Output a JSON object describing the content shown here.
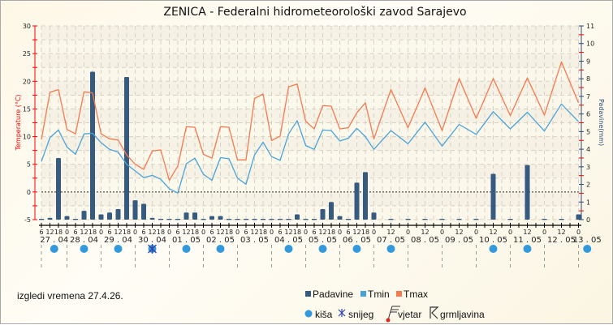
{
  "chart_data": {
    "type": "bar+line",
    "title": "ZENICA - Federalni hidrometeorološki zavod Sarajevo",
    "ylabel_left": "Temperature (°C)",
    "ylabel_right": "Padavine(mm)",
    "ylim_left": [
      -5,
      30
    ],
    "ylim_right": [
      0,
      11
    ],
    "grid": true,
    "legend_position": "bottom",
    "x": [
      "27.04 06",
      "27.04 12",
      "27.04 18",
      "28.04 00",
      "28.04 06",
      "28.04 12",
      "28.04 18",
      "29.04 00",
      "29.04 06",
      "29.04 12",
      "29.04 18",
      "30.04 00",
      "30.04 06",
      "30.04 12",
      "30.04 18",
      "01.05 00",
      "01.05 06",
      "01.05 12",
      "01.05 18",
      "02.05 00",
      "02.05 06",
      "02.05 12",
      "02.05 18",
      "03.05 00",
      "03.05 06",
      "03.05 12",
      "03.05 18",
      "04.05 00",
      "04.05 06",
      "04.05 12",
      "04.05 18",
      "05.05 00",
      "05.05 06",
      "05.05 12",
      "05.05 18",
      "06.05 00",
      "06.05 06",
      "06.05 12",
      "06.05 18",
      "07.05 00",
      "07.05 12",
      "08.05 00",
      "08.05 12",
      "09.05 00",
      "09.05 12",
      "10.05 00",
      "10.05 12",
      "11.05 00",
      "11.05 12",
      "12.05 00",
      "12.05 12",
      "13.05 00"
    ],
    "series": [
      {
        "name": "Padavine",
        "type": "bar",
        "axis": "right",
        "color": "#375a7f",
        "values": [
          0,
          0.1,
          3.5,
          0.2,
          0,
          0.5,
          8.4,
          0.3,
          0.4,
          0.6,
          8.1,
          1.1,
          0.9,
          0.1,
          0,
          0,
          0,
          0.4,
          0.4,
          0,
          0.2,
          0.2,
          0,
          0,
          0,
          0,
          0,
          0,
          0,
          0,
          0.3,
          0,
          0,
          0.6,
          1.0,
          0.2,
          0,
          2.1,
          2.7,
          0.4,
          0,
          0,
          0,
          0,
          0,
          0,
          2.6,
          0,
          3.1,
          0,
          0,
          0.3
        ]
      },
      {
        "name": "Tmin",
        "type": "line",
        "axis": "left",
        "color": "#4aa3d8",
        "values": [
          5.5,
          9.8,
          11.2,
          8.1,
          6.8,
          10.5,
          10.6,
          8.9,
          7.7,
          7.2,
          5.0,
          3.8,
          2.6,
          3.0,
          2.3,
          0.6,
          -0.2,
          5.1,
          6.1,
          3.2,
          2.1,
          6.2,
          6.0,
          2.5,
          1.4,
          6.7,
          9.0,
          6.4,
          5.7,
          10.5,
          12.9,
          8.4,
          7.7,
          11.2,
          11.1,
          9.2,
          9.7,
          11.5,
          10.0,
          7.7,
          11.1,
          8.7,
          12.6,
          8.3,
          12.2,
          10.4,
          14.5,
          11.4,
          14.4,
          11.0,
          15.9,
          12.7
        ]
      },
      {
        "name": "Tmax",
        "type": "line",
        "axis": "left",
        "color": "#f47a50",
        "values": [
          9.5,
          18.0,
          18.5,
          11.3,
          10.5,
          18.1,
          17.9,
          10.5,
          9.6,
          9.4,
          6.7,
          5.0,
          4.1,
          7.4,
          7.6,
          2.1,
          4.7,
          11.8,
          11.7,
          6.8,
          6.1,
          11.8,
          11.7,
          5.8,
          5.8,
          16.9,
          17.7,
          9.3,
          10.1,
          19.0,
          19.5,
          12.8,
          11.4,
          15.6,
          15.5,
          11.4,
          11.6,
          14.3,
          16.1,
          9.6,
          18.5,
          11.6,
          18.8,
          11.1,
          20.5,
          13.3,
          20.5,
          13.8,
          20.6,
          13.9,
          23.5,
          16.1
        ]
      }
    ],
    "days": [
      "27 . 04",
      "28 . 04",
      "29 . 04",
      "30 . 04",
      "01 . 05",
      "02 . 05",
      "03 . 05",
      "04 . 05",
      "05 . 05",
      "06 . 05",
      "07 . 05",
      "08 . 05",
      "09 . 05",
      "10 . 05",
      "11 . 05",
      "12 . 05",
      "13 . 05"
    ],
    "weather": [
      {
        "day": "27 . 04",
        "symbol": "kisa"
      },
      {
        "day": "28 . 04",
        "symbol": "kisa"
      },
      {
        "day": "29 . 04",
        "symbol": "kisa"
      },
      {
        "day": "30 . 04",
        "symbol": "kisa+snijeg"
      },
      {
        "day": "01 . 05",
        "symbol": "kisa"
      },
      {
        "day": "02 . 05",
        "symbol": "kisa"
      },
      {
        "day": "04 . 05",
        "symbol": "kisa"
      },
      {
        "day": "05 . 05",
        "symbol": "kisa"
      },
      {
        "day": "06 . 05",
        "symbol": "kisa"
      },
      {
        "day": "07 . 05",
        "symbol": "kisa"
      },
      {
        "day": "10 . 05",
        "symbol": "kisa"
      },
      {
        "day": "11 . 05",
        "symbol": "kisa"
      },
      {
        "day": "13 . 05",
        "symbol": "kisa"
      }
    ]
  },
  "note": "izgledi vremena 27.4.26.",
  "legend": {
    "series": [
      "Padavine",
      "Tmin",
      "Tmax"
    ],
    "symbols": {
      "kisa": "kiša",
      "snijeg": "snijeg",
      "vjetar": "vjetar",
      "grmljavina": "grmljavina"
    }
  },
  "colors": {
    "left_axis": "#ff0000",
    "right_axis": "#2b4a78",
    "rain": "#3399dd",
    "snow": "#3344aa"
  }
}
